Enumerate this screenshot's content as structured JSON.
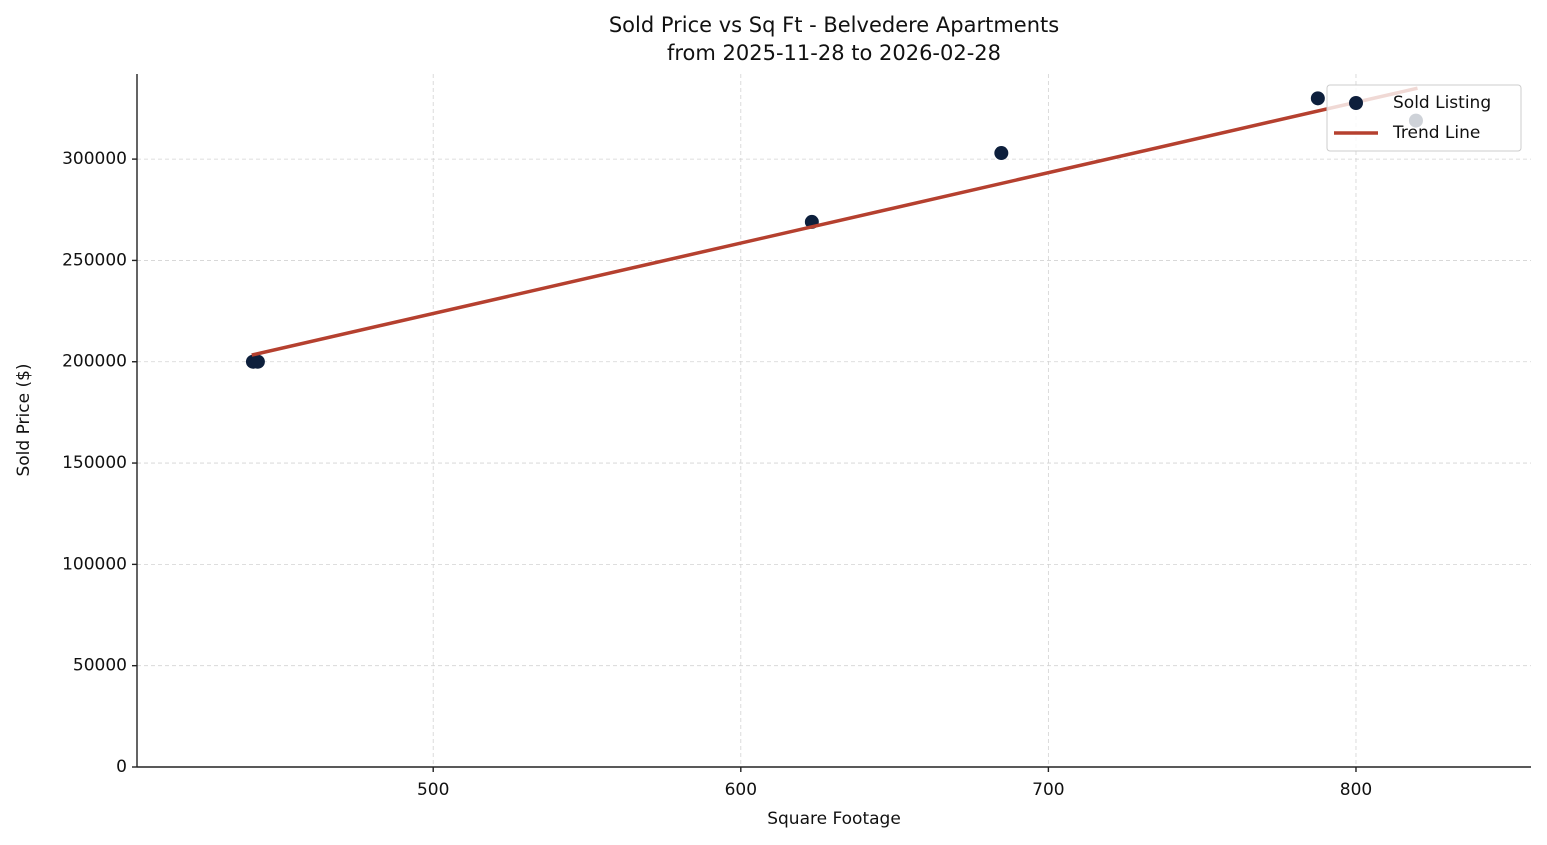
{
  "chart_data": {
    "type": "scatter",
    "title": "Sold Price vs Sq Ft - Belvedere Apartments",
    "subtitle": "from 2025-11-28 to 2026-02-28",
    "x_label": "Square Footage",
    "y_label": "Sold Price ($)",
    "xlim": [
      403.7,
      856.9
    ],
    "ylim": [
      0,
      342000
    ],
    "xticks": [
      500,
      600,
      700,
      800
    ],
    "yticks": [
      0,
      50000,
      100000,
      150000,
      200000,
      250000,
      300000
    ],
    "grid": true,
    "legend": "upper right",
    "series": [
      {
        "name": "Sold Listing",
        "type": "scatter",
        "color": "#0d1f3c",
        "x": [
          441.4,
          443,
          623.1,
          684.7,
          787.6,
          819.5
        ],
        "values": [
          200000,
          200000,
          269000,
          303000,
          330000,
          319000
        ]
      },
      {
        "name": "Trend Line",
        "type": "line",
        "color": "#b5402f",
        "x": [
          441,
          820
        ],
        "values": [
          203300,
          335000
        ]
      }
    ]
  }
}
